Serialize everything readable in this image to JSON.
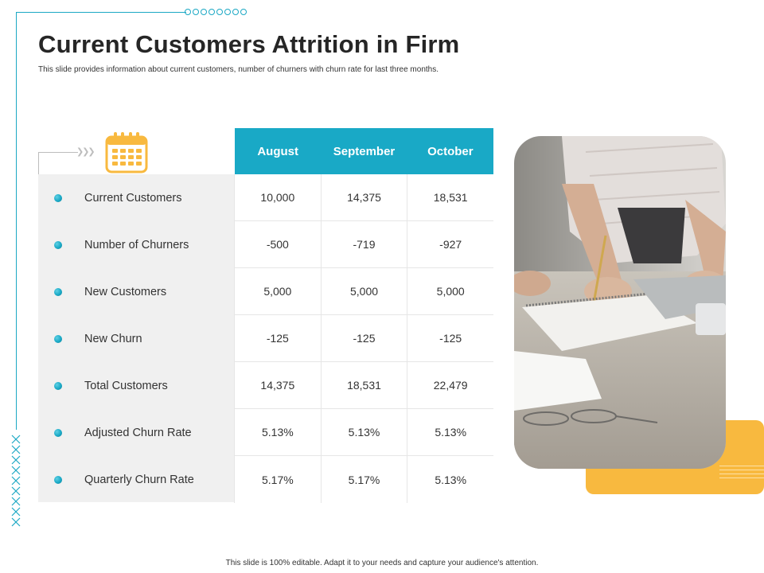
{
  "slide": {
    "title": "Current Customers Attrition in Firm",
    "subtitle": "This slide provides information about current customers, number of churners with churn rate for last three months.",
    "footer": "This slide is 100% editable.  Adapt it to your needs and capture your audience's attention."
  },
  "colors": {
    "accent": "#19a9c6",
    "highlight": "#f8b93f",
    "panel": "#f0f0f0"
  },
  "icons": {
    "calendar": "calendar-icon",
    "bullet": "dot-bullet-icon"
  },
  "table": {
    "columns": [
      "August",
      "September",
      "October"
    ],
    "rows": [
      {
        "label": "Current Customers",
        "values": [
          "10,000",
          "14,375",
          "18,531"
        ]
      },
      {
        "label": "Number of Churners",
        "values": [
          "-500",
          "-719",
          "-927"
        ]
      },
      {
        "label": "New Customers",
        "values": [
          "5,000",
          "5,000",
          "5,000"
        ]
      },
      {
        "label": "New Churn",
        "values": [
          "-125",
          "-125",
          "-125"
        ]
      },
      {
        "label": "Total Customers",
        "values": [
          "14,375",
          "18,531",
          "22,479"
        ]
      },
      {
        "label": "Adjusted Churn Rate",
        "values": [
          "5.13%",
          "5.13%",
          "5.13%"
        ]
      },
      {
        "label": "Quarterly Churn Rate",
        "values": [
          "5.17%",
          "5.17%",
          "5.13%"
        ]
      }
    ]
  }
}
